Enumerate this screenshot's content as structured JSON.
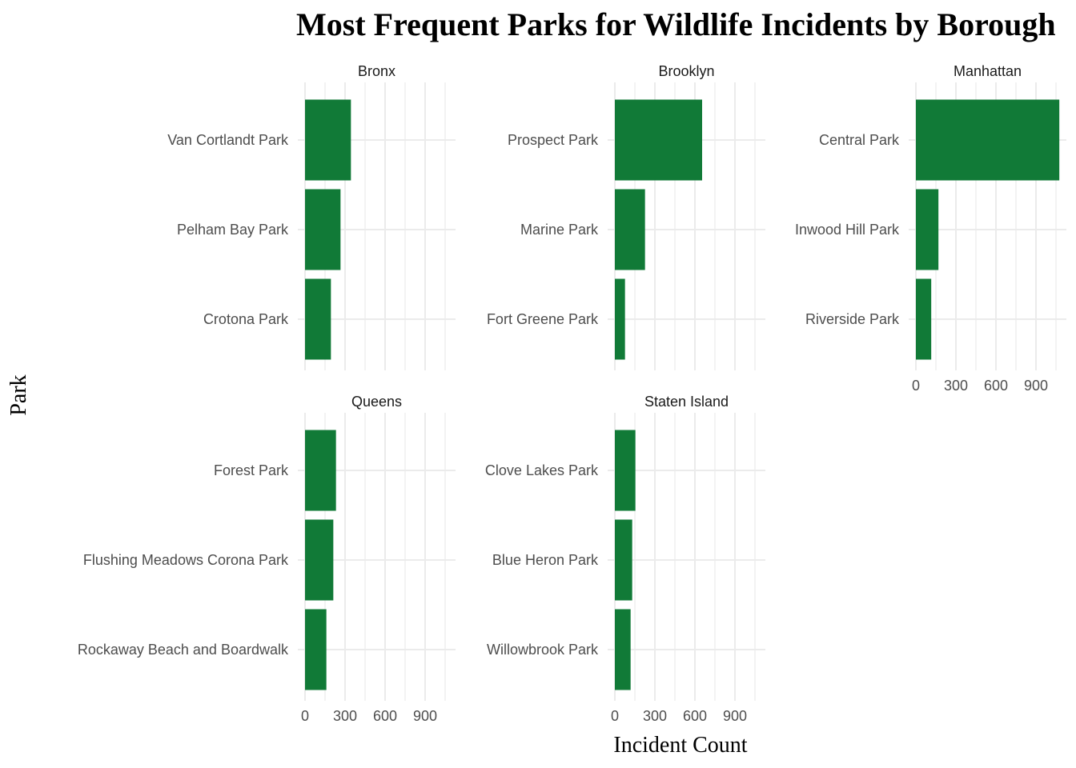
{
  "chart_data": {
    "type": "bar",
    "orientation": "horizontal",
    "title": "Most Frequent Parks for Wildlife Incidents by Borough",
    "xlabel": "Incident Count",
    "ylabel": "Park",
    "xlim": [
      0,
      1075
    ],
    "xticks": [
      0,
      300,
      600,
      900
    ],
    "xtick_labels": [
      "0",
      "300",
      "600",
      "900"
    ],
    "grid": true,
    "bar_color": "#117a37",
    "facets": [
      {
        "name": "Bronx",
        "categories": [
          "Van Cortlandt Park",
          "Pelham Bay Park",
          "Crotona Park"
        ],
        "values": [
          344,
          266,
          194
        ]
      },
      {
        "name": "Brooklyn",
        "categories": [
          "Prospect Park",
          "Marine Park",
          "Fort Greene Park"
        ],
        "values": [
          654,
          226,
          76
        ]
      },
      {
        "name": "Manhattan",
        "categories": [
          "Central Park",
          "Inwood Hill Park",
          "Riverside Park"
        ],
        "values": [
          1075,
          169,
          115
        ]
      },
      {
        "name": "Queens",
        "categories": [
          "Forest Park",
          "Flushing Meadows Corona Park",
          "Rockaway Beach and Boardwalk"
        ],
        "values": [
          232,
          212,
          160
        ]
      },
      {
        "name": "Staten Island",
        "categories": [
          "Clove Lakes Park",
          "Blue Heron Park",
          "Willowbrook Park"
        ],
        "values": [
          154,
          130,
          118
        ]
      }
    ]
  }
}
